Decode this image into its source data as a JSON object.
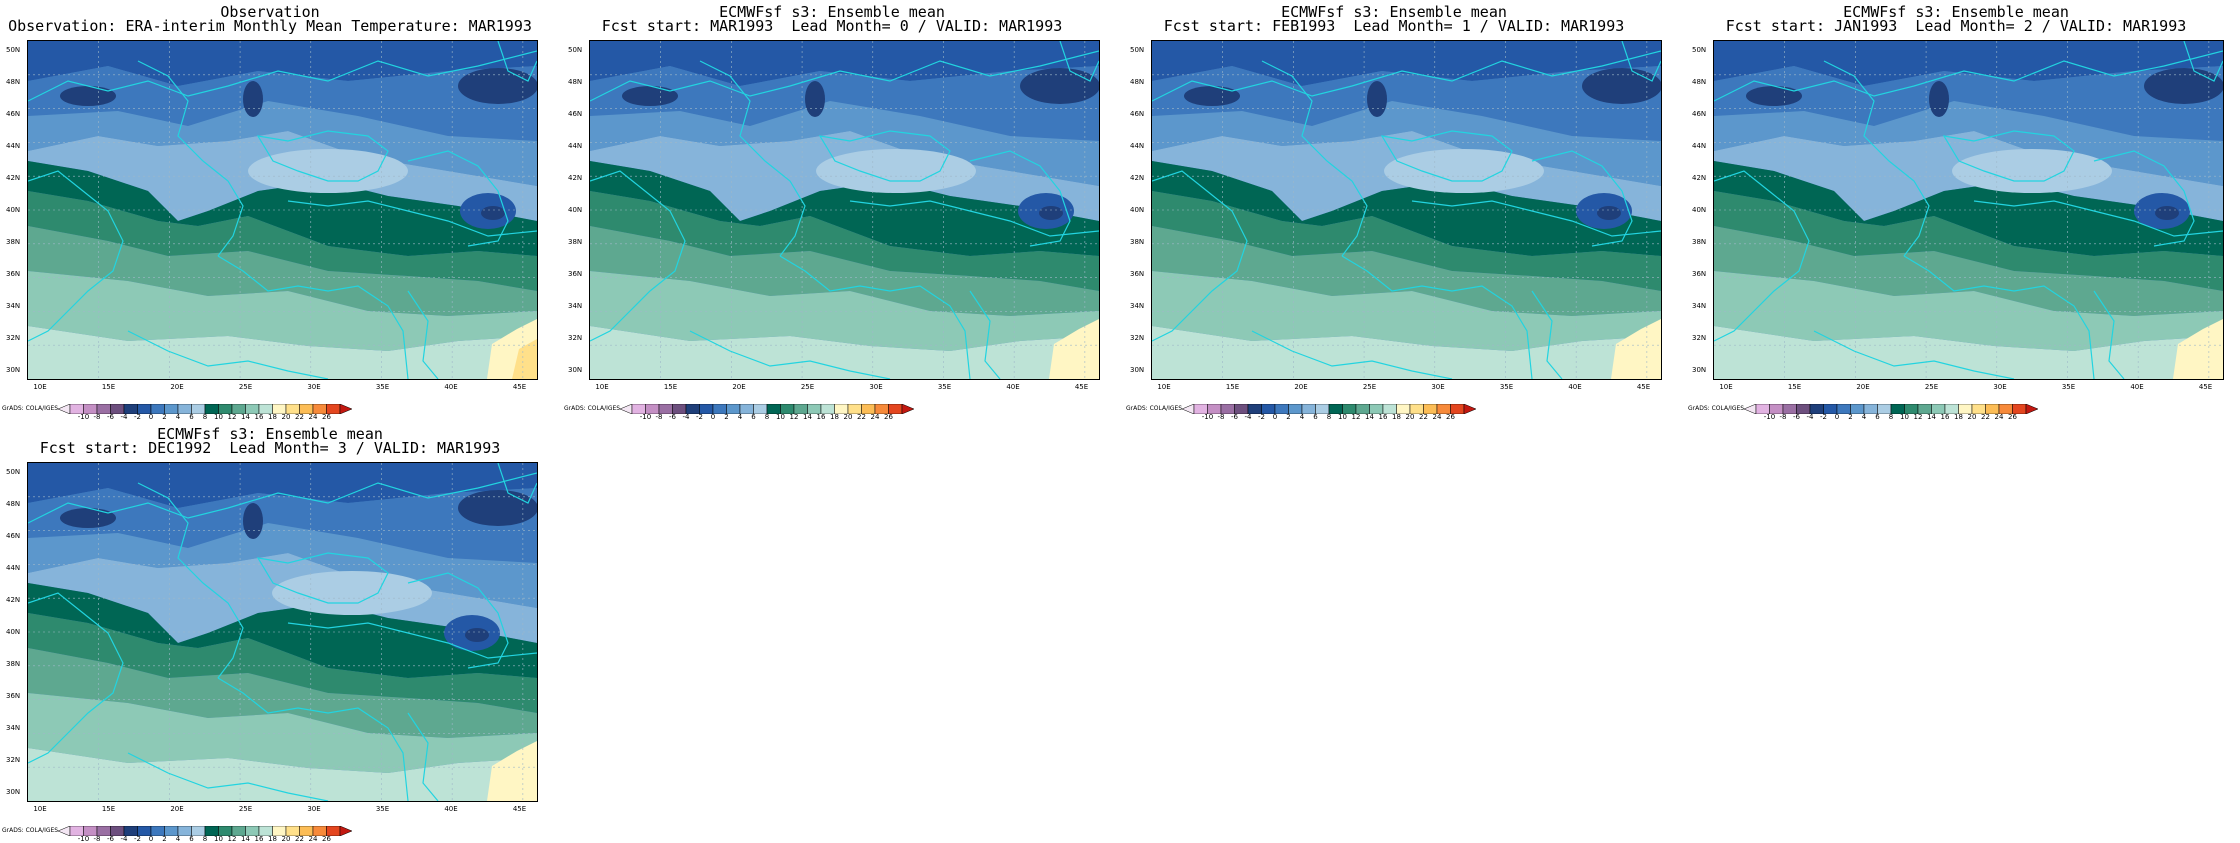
{
  "panels": [
    {
      "title1": "Observation",
      "title2": "Observation: ERA-interim Monthly Mean Temperature: MAR1993"
    },
    {
      "title1": "ECMWFsf s3: Ensemble mean",
      "title2": "Fcst start: MAR1993  Lead Month= 0 / VALID: MAR1993"
    },
    {
      "title1": "ECMWFsf s3: Ensemble mean",
      "title2": "Fcst start: FEB1993  Lead Month= 1 / VALID: MAR1993"
    },
    {
      "title1": "ECMWFsf s3: Ensemble mean",
      "title2": "Fcst start: JAN1993  Lead Month= 2 / VALID: MAR1993"
    },
    {
      "title1": "ECMWFsf s3: Ensemble mean",
      "title2": "Fcst start: DEC1992  Lead Month= 3 / VALID: MAR1993"
    }
  ],
  "lat_labels": [
    "50N",
    "48N",
    "46N",
    "44N",
    "42N",
    "40N",
    "38N",
    "36N",
    "34N",
    "32N",
    "30N"
  ],
  "lon_labels": [
    "10E",
    "15E",
    "20E",
    "25E",
    "30E",
    "35E",
    "40E",
    "45E"
  ],
  "footer_label": "GrADS: COLA/IGES",
  "colorbar_ticks": [
    "-10",
    "-8",
    "-6",
    "-4",
    "-2",
    "0",
    "2",
    "4",
    "6",
    "8",
    "10",
    "12",
    "14",
    "16",
    "18",
    "20",
    "22",
    "24",
    "26"
  ],
  "colorbar_colors": [
    "#f3e6f3",
    "#e2b3e2",
    "#c48fc4",
    "#9a6fa3",
    "#6d4f7e",
    "#1f3f7a",
    "#2458a6",
    "#3d78bd",
    "#5c97cc",
    "#86b4da",
    "#abcde4",
    "#006654",
    "#2e8a6e",
    "#5ea890",
    "#8dc9b6",
    "#bde3d6",
    "#fff6c4",
    "#ffe08a",
    "#fcbd56",
    "#f78a3a",
    "#e4461f",
    "#c21810"
  ]
}
